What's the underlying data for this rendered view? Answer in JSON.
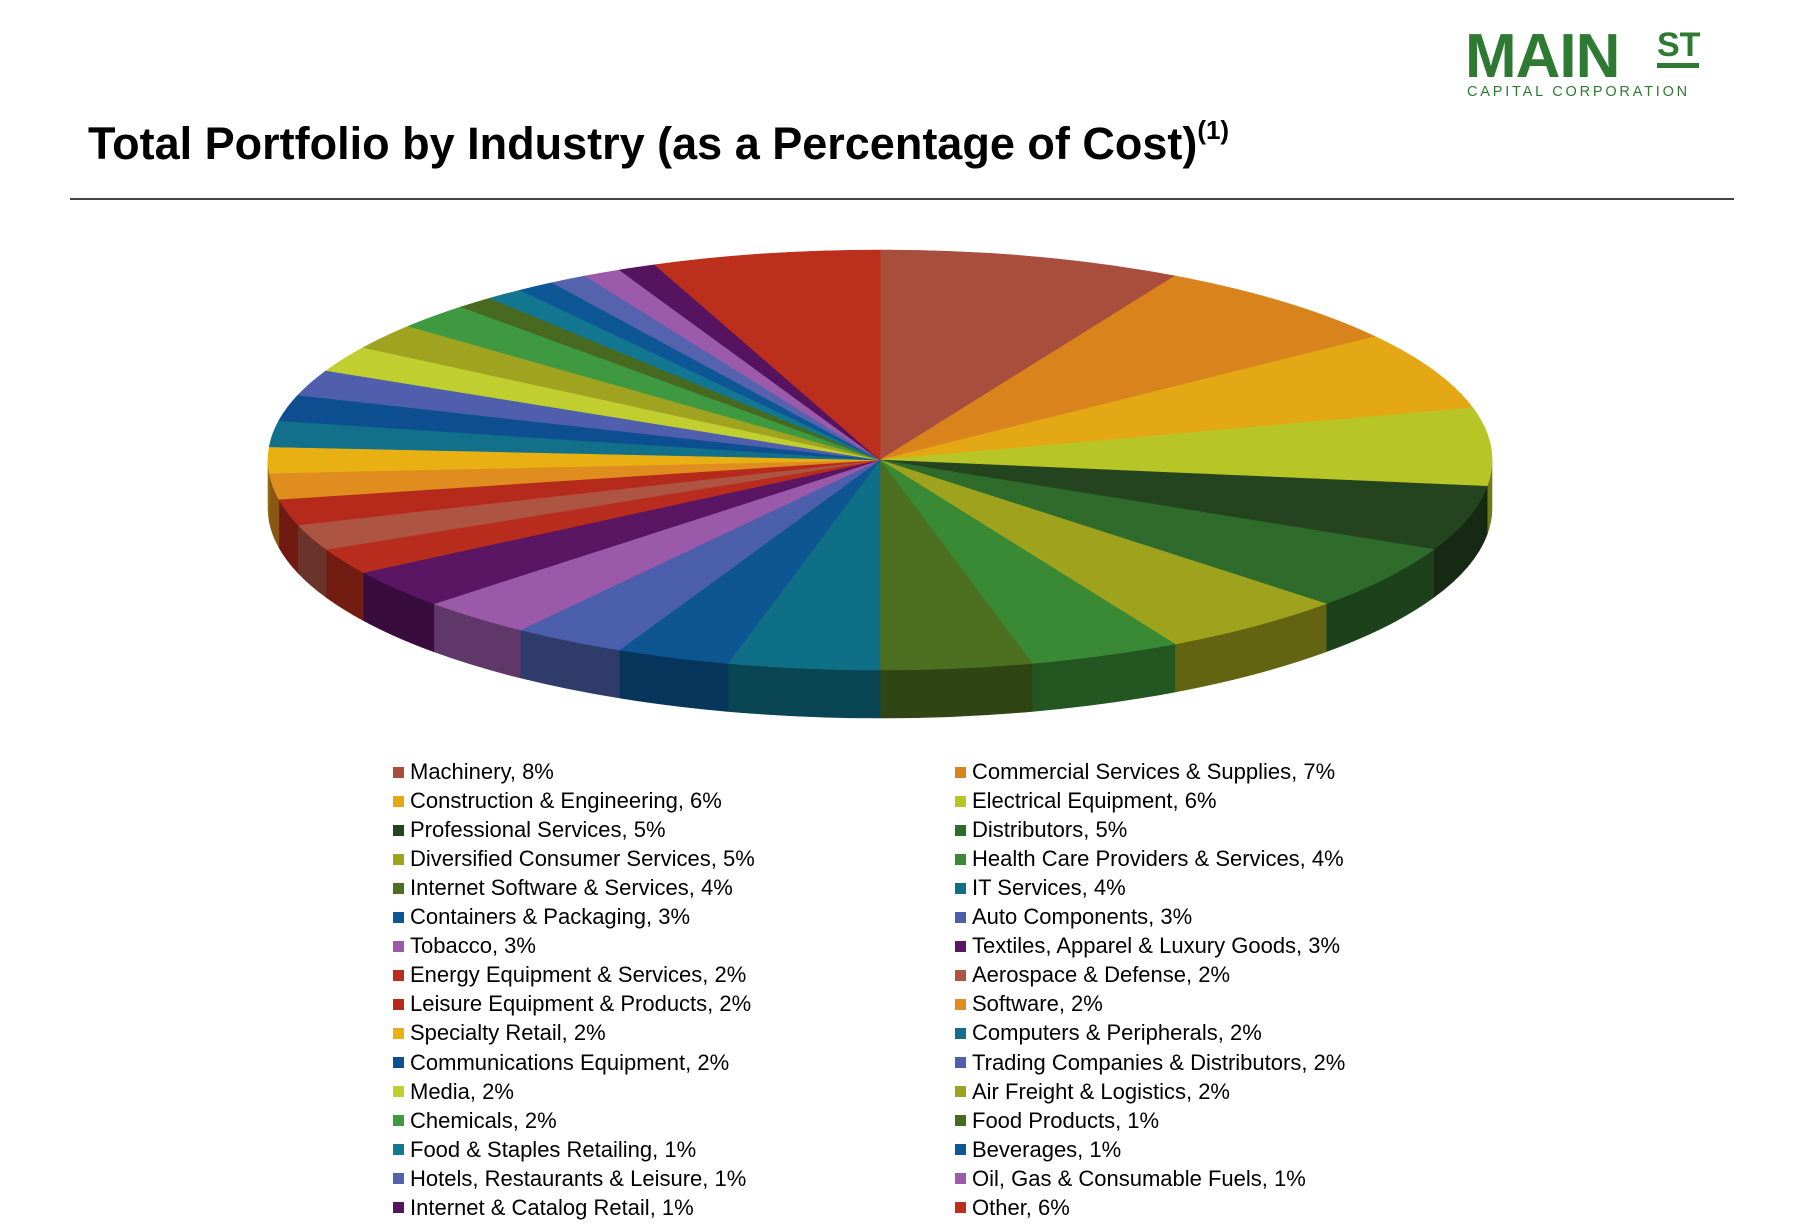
{
  "logo": {
    "main": "MAIN",
    "superscript": "ST",
    "subtitle": "CAPITAL CORPORATION",
    "color": "#2f7a32"
  },
  "header": {
    "title": "Total Portfolio by Industry (as a Percentage of Cost)",
    "footnote": "(1)"
  },
  "chart_data": {
    "type": "pie",
    "style": "3d",
    "title": "Total Portfolio by Industry (as a Percentage of Cost)",
    "legend_position": "bottom",
    "slices": [
      {
        "label": "Machinery, 8%",
        "name": "Machinery",
        "value": 8,
        "color": "#a94d3d"
      },
      {
        "label": "Commercial Services & Supplies, 7%",
        "name": "Commercial Services & Supplies",
        "value": 7,
        "color": "#d9831c"
      },
      {
        "label": "Construction & Engineering, 6%",
        "name": "Construction & Engineering",
        "value": 6,
        "color": "#e3a814"
      },
      {
        "label": "Electrical Equipment, 6%",
        "name": "Electrical Equipment",
        "value": 6,
        "color": "#b7c526"
      },
      {
        "label": "Professional Services, 5%",
        "name": "Professional Services",
        "value": 5,
        "color": "#24441f"
      },
      {
        "label": "Distributors, 5%",
        "name": "Distributors",
        "value": 5,
        "color": "#2f6b2b"
      },
      {
        "label": "Diversified Consumer Services, 5%",
        "name": "Diversified Consumer Services",
        "value": 5,
        "color": "#9ea21d"
      },
      {
        "label": "Health Care Providers & Services, 4%",
        "name": "Health Care Providers & Services",
        "value": 4,
        "color": "#3a8a35"
      },
      {
        "label": "Internet Software & Services, 4%",
        "name": "Internet Software & Services",
        "value": 4,
        "color": "#4c6f21"
      },
      {
        "label": "IT Services, 4%",
        "name": "IT Services",
        "value": 4,
        "color": "#0f6f86"
      },
      {
        "label": "Containers & Packaging, 3%",
        "name": "Containers & Packaging",
        "value": 3,
        "color": "#0d5692"
      },
      {
        "label": "Auto Components, 3%",
        "name": "Auto Components",
        "value": 3,
        "color": "#4b5fac"
      },
      {
        "label": "Tobacco, 3%",
        "name": "Tobacco",
        "value": 3,
        "color": "#9b59a9"
      },
      {
        "label": "Textiles, Apparel & Luxury Goods, 3%",
        "name": "Textiles, Apparel & Luxury Goods",
        "value": 3,
        "color": "#5a1563"
      },
      {
        "label": "Energy Equipment & Services, 2%",
        "name": "Energy Equipment & Services",
        "value": 2,
        "color": "#b82d1d"
      },
      {
        "label": "Aerospace & Defense, 2%",
        "name": "Aerospace & Defense",
        "value": 2,
        "color": "#ad5443"
      },
      {
        "label": "Leisure Equipment & Products, 2%",
        "name": "Leisure Equipment & Products",
        "value": 2,
        "color": "#b52a1b"
      },
      {
        "label": "Software, 2%",
        "name": "Software",
        "value": 2,
        "color": "#de8d1e"
      },
      {
        "label": "Specialty Retail, 2%",
        "name": "Specialty Retail",
        "value": 2,
        "color": "#e8b013"
      },
      {
        "label": "Computers & Peripherals, 2%",
        "name": "Computers & Peripherals",
        "value": 2,
        "color": "#12708a"
      },
      {
        "label": "Communications Equipment, 2%",
        "name": "Communications Equipment",
        "value": 2,
        "color": "#0d4f91"
      },
      {
        "label": "Trading Companies & Distributors, 2%",
        "name": "Trading Companies & Distributors",
        "value": 2,
        "color": "#4f5fad"
      },
      {
        "label": "Media, 2%",
        "name": "Media",
        "value": 2,
        "color": "#c0cf2f"
      },
      {
        "label": "Air Freight & Logistics, 2%",
        "name": "Air Freight & Logistics",
        "value": 2,
        "color": "#9fa31f"
      },
      {
        "label": "Chemicals, 2%",
        "name": "Chemicals",
        "value": 2,
        "color": "#3f9940"
      },
      {
        "label": "Food Products, 1%",
        "name": "Food Products",
        "value": 1,
        "color": "#476a20"
      },
      {
        "label": "Food & Staples Retailing, 1%",
        "name": "Food & Staples Retailing",
        "value": 1,
        "color": "#137791"
      },
      {
        "label": "Beverages, 1%",
        "name": "Beverages",
        "value": 1,
        "color": "#0d5796"
      },
      {
        "label": "Hotels, Restaurants & Leisure, 1%",
        "name": "Hotels, Restaurants & Leisure",
        "value": 1,
        "color": "#5562ae"
      },
      {
        "label": "Oil, Gas & Consumable Fuels, 1%",
        "name": "Oil, Gas & Consumable Fuels",
        "value": 1,
        "color": "#9c5aaa"
      },
      {
        "label": "Internet & Catalog Retail, 1%",
        "name": "Internet & Catalog Retail",
        "value": 1,
        "color": "#561460"
      },
      {
        "label": "Other, 6%",
        "name": "Other",
        "value": 6,
        "color": "#bb2f1c"
      }
    ]
  }
}
